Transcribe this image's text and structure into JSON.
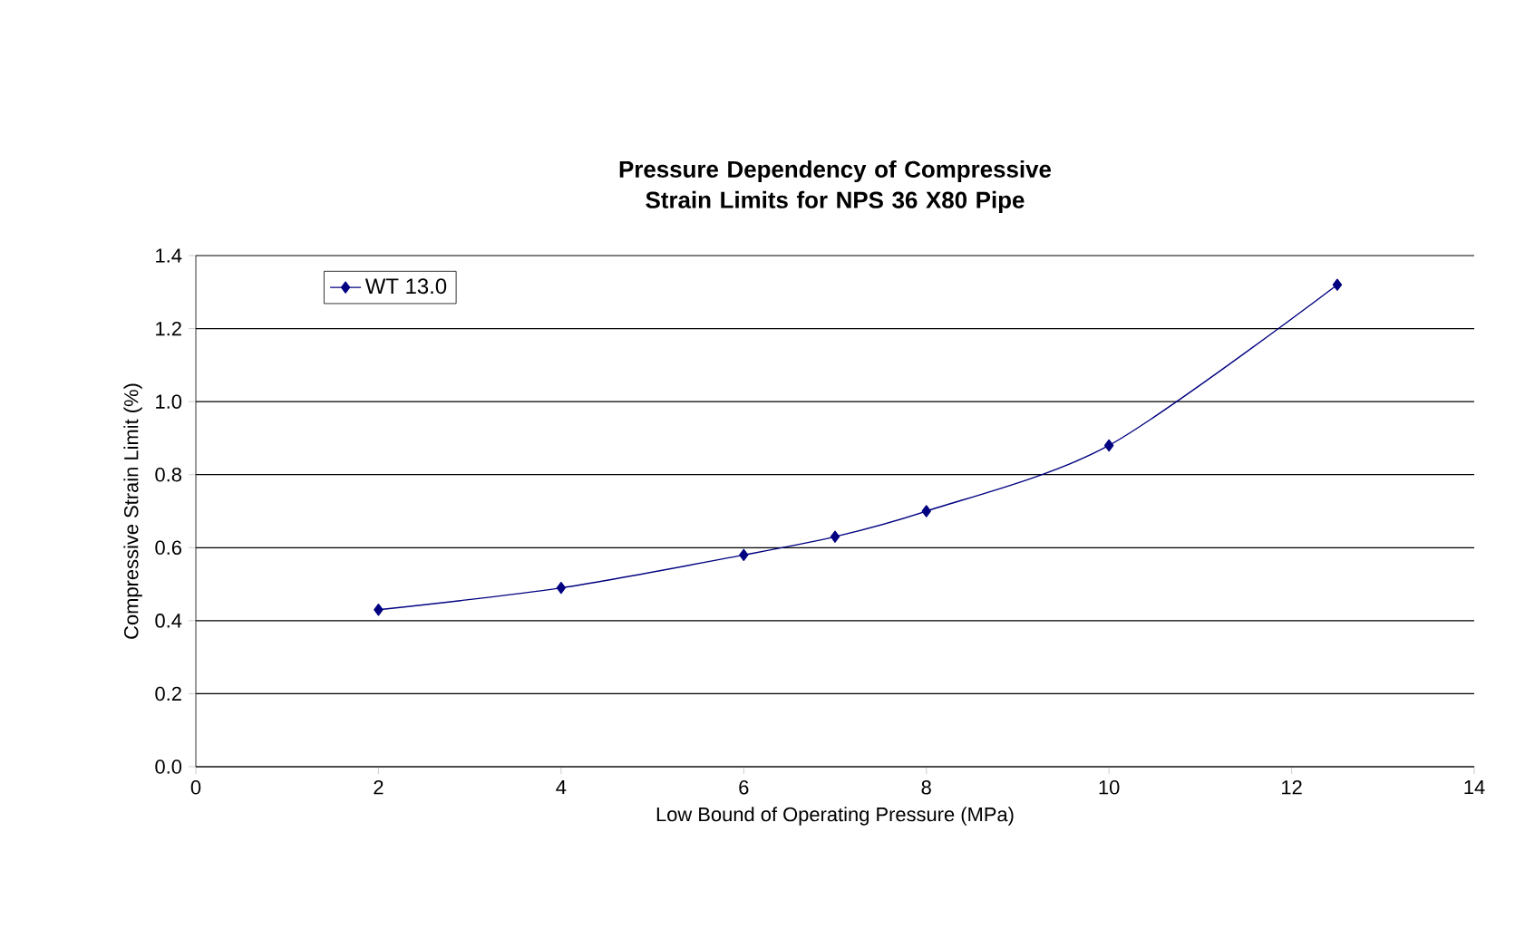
{
  "chart_data": {
    "type": "line",
    "title": "Pressure Dependency of Compressive Strain Limits for NPS 36 X80 Pipe",
    "xlabel": "Low Bound of Operating Pressure (MPa)",
    "ylabel": "Compressive Strain Limit (%)",
    "x": [
      2,
      4,
      6,
      7,
      8,
      10,
      12.5
    ],
    "series": [
      {
        "name": "WT 13.0",
        "color": "#000080",
        "values": [
          0.43,
          0.49,
          0.58,
          0.63,
          0.7,
          0.88,
          1.32
        ]
      }
    ],
    "xlim": [
      0,
      14
    ],
    "xticks": [
      0,
      2,
      4,
      6,
      8,
      10,
      12,
      14
    ],
    "ylim": [
      0,
      1.4
    ],
    "yticks": [
      {
        "value": 0,
        "label": "0.0"
      },
      {
        "value": 0.2,
        "label": "0.2"
      },
      {
        "value": 0.4,
        "label": "0.4"
      },
      {
        "value": 0.6,
        "label": "0.6"
      },
      {
        "value": 0.8,
        "label": "0.8"
      },
      {
        "value": 1.0,
        "label": "1.0"
      },
      {
        "value": 1.2,
        "label": "1.2"
      },
      {
        "value": 1.4,
        "label": "1.4"
      }
    ],
    "grid": "y",
    "legend": "top left",
    "marker": "diamond",
    "line_style": "solid"
  }
}
